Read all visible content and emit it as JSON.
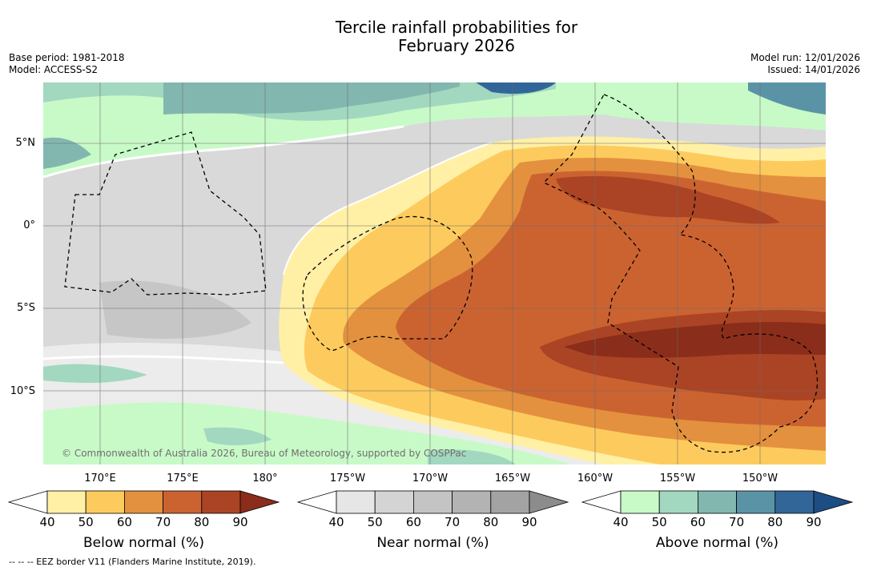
{
  "title_line1": "Tercile rainfall probabilities for",
  "title_line2": "February 2026",
  "meta_left": {
    "base_period": "Base period: 1981-2018",
    "model": "Model: ACCESS-S2"
  },
  "meta_right": {
    "model_run": "Model run: 12/01/2026",
    "issued": "Issued: 14/01/2026"
  },
  "map": {
    "lat_labels": [
      "5°N",
      "0°",
      "5°S",
      "10°S"
    ],
    "lon_labels": [
      "170°E",
      "175°E",
      "180°",
      "175°W",
      "170°W",
      "165°W",
      "160°W",
      "155°W",
      "150°W"
    ],
    "copyright": "© Commonwealth of Australia 2026, Bureau of Meteorology, supported by COSPPac"
  },
  "colorbars": [
    {
      "title": "Below normal (%)",
      "ticks": [
        "40",
        "50",
        "60",
        "70",
        "80",
        "90"
      ],
      "colors": [
        "#ffffff",
        "#fff0a6",
        "#fdcb5d",
        "#e3913e",
        "#cb6331",
        "#ab4424",
        "#8a2d1a"
      ]
    },
    {
      "title": "Near normal (%)",
      "ticks": [
        "40",
        "50",
        "60",
        "70",
        "80",
        "90"
      ],
      "colors": [
        "#ffffff",
        "#e6e6e6",
        "#d4d4d4",
        "#c4c4c4",
        "#b3b3b3",
        "#a3a3a3",
        "#8c8c8c"
      ]
    },
    {
      "title": "Above normal (%)",
      "ticks": [
        "40",
        "50",
        "60",
        "70",
        "80",
        "90"
      ],
      "colors": [
        "#ffffff",
        "#c8fac8",
        "#a2d8bf",
        "#82b7b0",
        "#5b93a6",
        "#336698",
        "#1c4e84"
      ]
    }
  ],
  "footnote": "--  --  -- EEZ border V11 (Flanders Marine Institute, 2019)."
}
